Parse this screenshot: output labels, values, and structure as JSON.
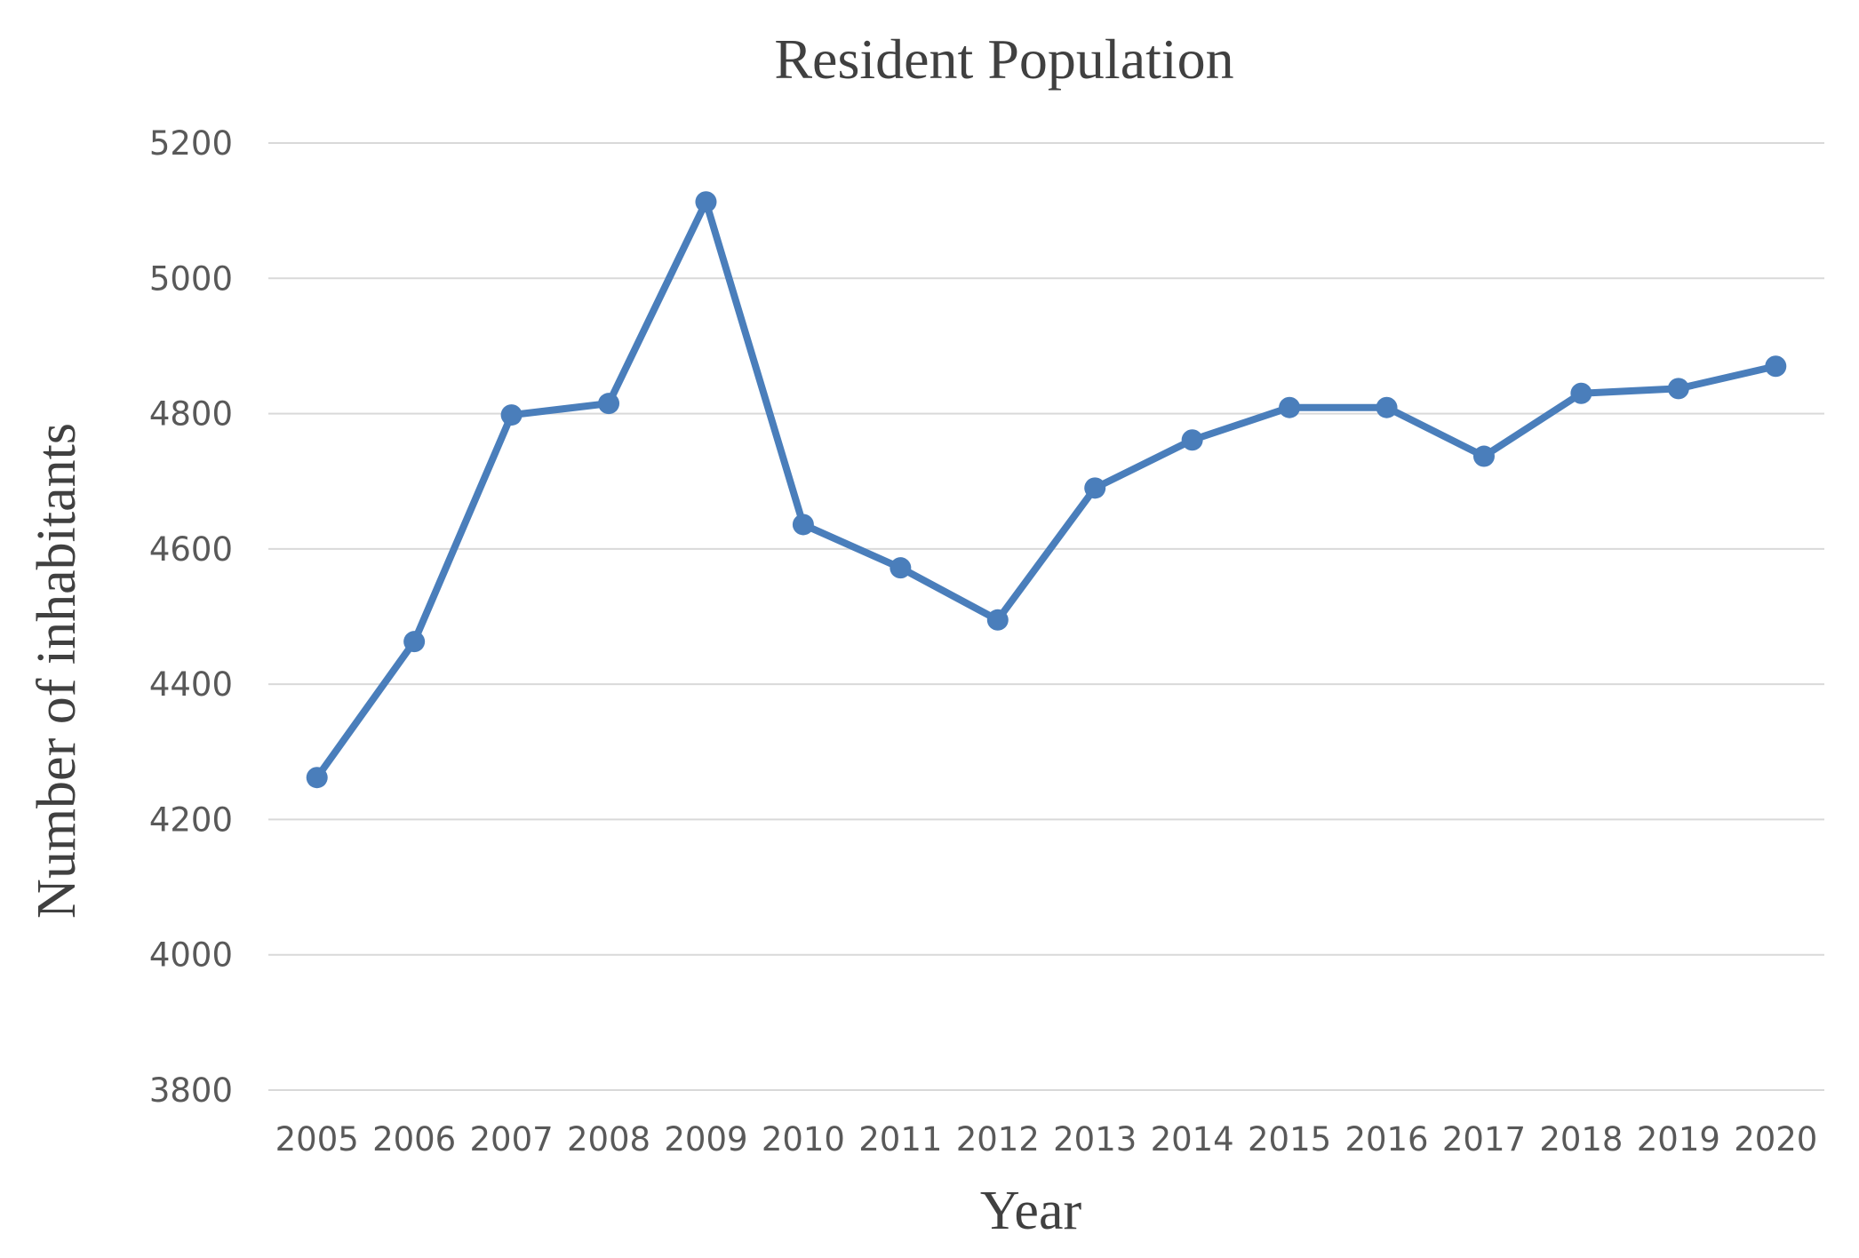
{
  "chart_data": {
    "type": "line",
    "title": "Resident Population",
    "xlabel": "Year",
    "ylabel": "Number of inhabitants",
    "categories": [
      "2005",
      "2006",
      "2007",
      "2008",
      "2009",
      "2010",
      "2011",
      "2012",
      "2013",
      "2014",
      "2015",
      "2016",
      "2017",
      "2018",
      "2019",
      "2020"
    ],
    "series": [
      {
        "name": "Resident Population",
        "values": [
          4262,
          4463,
          4798,
          4815,
          5113,
          4636,
          4572,
          4495,
          4690,
          4761,
          4809,
          4809,
          4737,
          4830,
          4837,
          4870
        ]
      }
    ],
    "ylim": [
      3800,
      5200
    ],
    "yticks": [
      3800,
      4000,
      4200,
      4400,
      4600,
      4800,
      5000,
      5200
    ],
    "ytick_labels": [
      "3800",
      "4000",
      "4200",
      "4400",
      "4600",
      "4800",
      "5000",
      "5200"
    ],
    "grid": true,
    "legend": "none",
    "colors": {
      "series": "#4a7ebb",
      "grid": "#d9d9d9",
      "text": "#404040",
      "tick_text": "#595959"
    }
  }
}
